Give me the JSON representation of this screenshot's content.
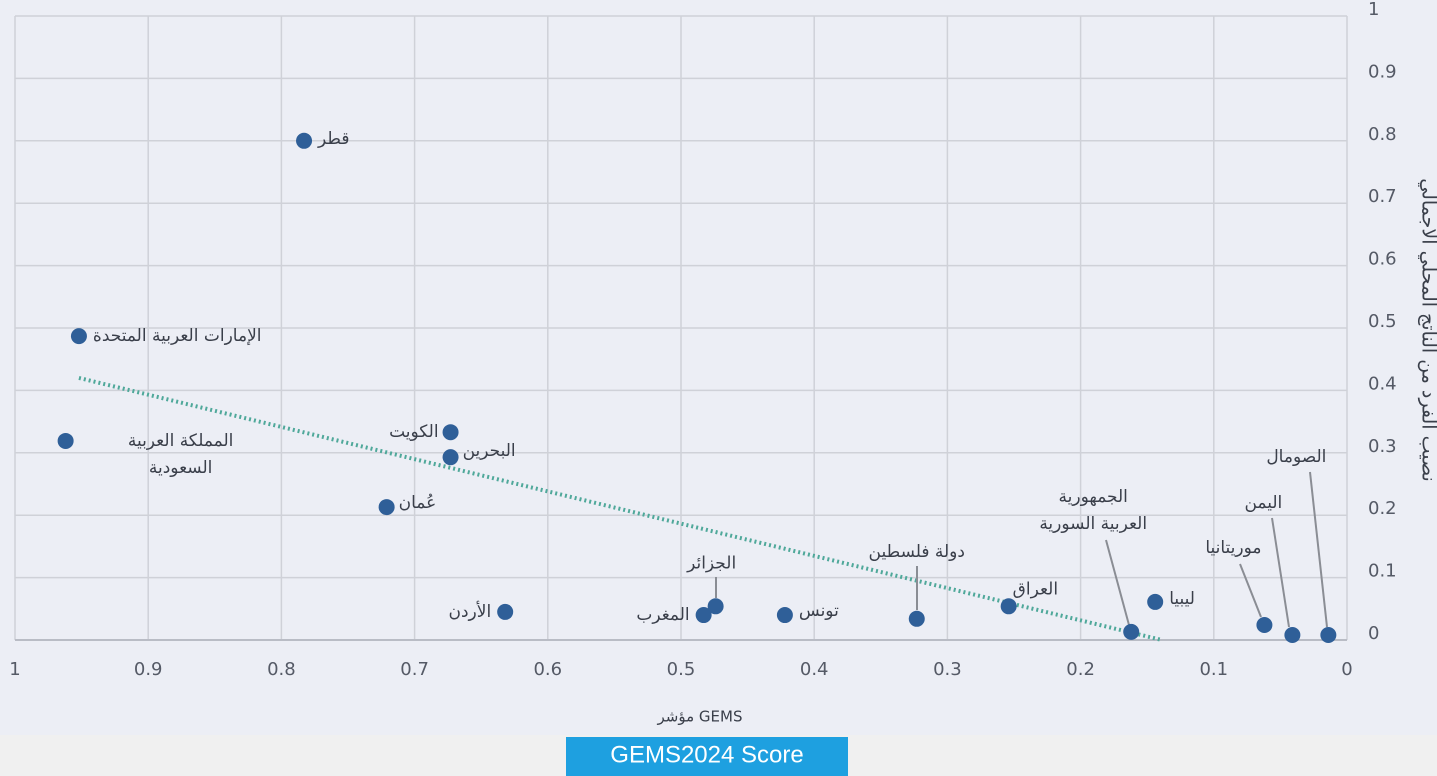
{
  "chart_data": {
    "type": "scatter",
    "x_label": "مؤشر GEMS",
    "y_label": "نصيب الفرد من الناتج المحلي الاجمالي",
    "caption": "GEMS2024 Score",
    "labels": [
      [
        "قطر"
      ],
      [
        "الإمارات العربية المتحدة"
      ],
      [
        "المملكة العربية",
        "السعودية"
      ],
      [
        "الكويت"
      ],
      [
        "البحرين"
      ],
      [
        "عُمان"
      ],
      [
        "الأردن"
      ],
      [
        "الجزائر"
      ],
      [
        "المغرب"
      ],
      [
        "تونس"
      ],
      [
        "دولة فلسطين"
      ],
      [
        "العراق"
      ],
      [
        "الجمهورية",
        "العربية السورية"
      ],
      [
        "ليبيا"
      ],
      [
        "موريتانيا"
      ],
      [
        "اليمن"
      ],
      [
        "الصومال"
      ]
    ],
    "x": [
      0.783,
      0.952,
      0.962,
      0.673,
      0.673,
      0.721,
      0.632,
      0.474,
      0.483,
      0.422,
      0.323,
      0.254,
      0.162,
      0.144,
      0.062,
      0.041,
      0.014
    ],
    "values": [
      0.8,
      0.487,
      0.319,
      0.333,
      0.293,
      0.213,
      0.045,
      0.054,
      0.04,
      0.04,
      0.034,
      0.054,
      0.013,
      0.061,
      0.024,
      0.008,
      0.008
    ],
    "color": "#2f5f98",
    "trendline": {
      "x": [
        0.952,
        0.139
      ],
      "values": [
        0.42,
        0
      ],
      "color": "#4fa89a"
    },
    "xlim": [
      1,
      0
    ],
    "ylim": [
      0,
      1
    ],
    "xticks": [
      1,
      0.9,
      0.8,
      0.7,
      0.6,
      0.5,
      0.4,
      0.3,
      0.2,
      0.1,
      0
    ],
    "yticks": [
      0,
      0.1,
      0.2,
      0.3,
      0.4,
      0.5,
      0.6,
      0.7,
      0.8,
      0.9,
      1
    ],
    "grid": true
  }
}
